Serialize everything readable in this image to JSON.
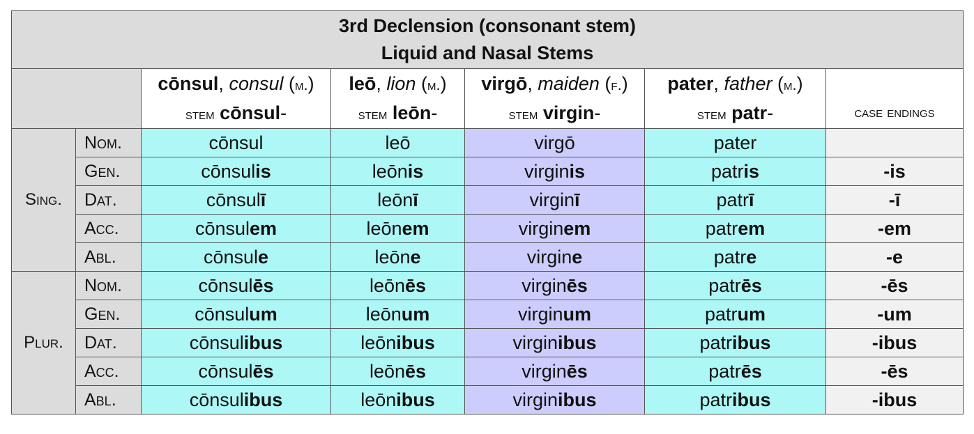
{
  "title_line1": "3rd Declension (consonant stem)",
  "title_line2": "Liquid and Nasal Stems",
  "stem_label": "stem",
  "columns": [
    {
      "lemma": "cōnsul",
      "gloss": "consul",
      "gender": "m.",
      "stem": "cōnsul"
    },
    {
      "lemma": "leō",
      "gloss": "lion",
      "gender": "m.",
      "stem": "leōn"
    },
    {
      "lemma": "virgō",
      "gloss": "maiden",
      "gender": "f.",
      "stem": "virgin"
    },
    {
      "lemma": "pater",
      "gloss": "father",
      "gender": "m.",
      "stem": "patr"
    }
  ],
  "case_endings_header": "case endings",
  "numbers": [
    "Sing.",
    "Plur."
  ],
  "rows": [
    {
      "case": "Nom.",
      "forms": [
        [
          "cōnsul",
          ""
        ],
        [
          "leō",
          ""
        ],
        [
          "virgō",
          ""
        ],
        [
          "pater",
          ""
        ]
      ],
      "ending": ""
    },
    {
      "case": "Gen.",
      "forms": [
        [
          "cōnsul",
          "is"
        ],
        [
          "leōn",
          "is"
        ],
        [
          "virgin",
          "is"
        ],
        [
          "patr",
          "is"
        ]
      ],
      "ending": "-is"
    },
    {
      "case": "Dat.",
      "forms": [
        [
          "cōnsul",
          "ī"
        ],
        [
          "leōn",
          "ī"
        ],
        [
          "virgin",
          "ī"
        ],
        [
          "patr",
          "ī"
        ]
      ],
      "ending": "-ī"
    },
    {
      "case": "Acc.",
      "forms": [
        [
          "cōnsul",
          "em"
        ],
        [
          "leōn",
          "em"
        ],
        [
          "virgin",
          "em"
        ],
        [
          "patr",
          "em"
        ]
      ],
      "ending": "-em"
    },
    {
      "case": "Abl.",
      "forms": [
        [
          "cōnsul",
          "e"
        ],
        [
          "leōn",
          "e"
        ],
        [
          "virgin",
          "e"
        ],
        [
          "patr",
          "e"
        ]
      ],
      "ending": "-e"
    },
    {
      "case": "Nom.",
      "forms": [
        [
          "cōnsul",
          "ēs"
        ],
        [
          "leōn",
          "ēs"
        ],
        [
          "virgin",
          "ēs"
        ],
        [
          "patr",
          "ēs"
        ]
      ],
      "ending": "-ēs"
    },
    {
      "case": "Gen.",
      "forms": [
        [
          "cōnsul",
          "um"
        ],
        [
          "leōn",
          "um"
        ],
        [
          "virgin",
          "um"
        ],
        [
          "patr",
          "um"
        ]
      ],
      "ending": "-um"
    },
    {
      "case": "Dat.",
      "forms": [
        [
          "cōnsul",
          "ibus"
        ],
        [
          "leōn",
          "ibus"
        ],
        [
          "virgin",
          "ibus"
        ],
        [
          "patr",
          "ibus"
        ]
      ],
      "ending": "-ibus"
    },
    {
      "case": "Acc.",
      "forms": [
        [
          "cōnsul",
          "ēs"
        ],
        [
          "leōn",
          "ēs"
        ],
        [
          "virgin",
          "ēs"
        ],
        [
          "patr",
          "ēs"
        ]
      ],
      "ending": "-ēs"
    },
    {
      "case": "Abl.",
      "forms": [
        [
          "cōnsul",
          "ibus"
        ],
        [
          "leōn",
          "ibus"
        ],
        [
          "virgin",
          "ibus"
        ],
        [
          "patr",
          "ibus"
        ]
      ],
      "ending": "-ibus"
    }
  ],
  "colors": {
    "header_gray": "#dcdcdc",
    "cyan": "#aef7f7",
    "lavender": "#cccdfc",
    "endings_bg": "#f1f1f1"
  }
}
